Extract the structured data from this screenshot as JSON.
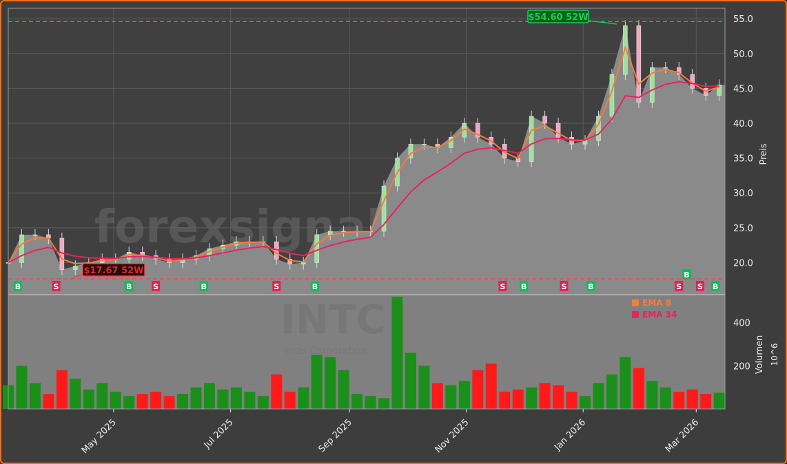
{
  "chart_data": [
    {
      "type": "candlestick",
      "ylabel": "Preis",
      "ylim": [
        15.5,
        56.5
      ],
      "yticks": [
        20.0,
        25.0,
        30.0,
        35.0,
        40.0,
        45.0,
        50.0,
        55.0
      ],
      "xlim": [
        "2025-03-07",
        "2026-03-16"
      ],
      "xticks": [
        {
          "date": "2025-05-01",
          "label": "May 2025"
        },
        {
          "date": "2025-07-01",
          "label": "Jul 2025"
        },
        {
          "date": "2025-09-01",
          "label": "Sep 2025"
        },
        {
          "date": "2025-11-01",
          "label": "Nov 2025"
        },
        {
          "date": "2026-01-01",
          "label": "Jan 2026"
        },
        {
          "date": "2026-03-01",
          "label": "Mar 2026"
        }
      ],
      "grid": true,
      "start_date": "2025-03-07",
      "period": "weekly",
      "close": [
        20,
        24,
        24,
        23.5,
        19,
        19.5,
        20,
        20.5,
        20.5,
        21.5,
        21,
        20.5,
        20,
        20.5,
        21,
        22,
        22.5,
        23,
        23,
        23,
        20.5,
        19.8,
        20,
        24,
        24.5,
        24.5,
        24.5,
        24.5,
        31,
        35,
        37,
        37,
        36.5,
        38,
        40,
        38,
        37,
        35,
        34.5,
        41,
        40,
        38,
        37,
        37.5,
        41,
        47,
        54,
        43,
        48,
        48,
        47,
        45,
        44,
        45.5
      ],
      "series": [
        {
          "name": "EMA 8",
          "color": "#f47c3c"
        },
        {
          "name": "EMA 34",
          "color": "#e8235f"
        }
      ],
      "annotations": [
        {
          "text": "$54.60 52W",
          "value": 54.6,
          "kind": "52w-high",
          "color": "#22c55e"
        },
        {
          "text": "$17.67 52W",
          "value": 17.67,
          "kind": "52w-low",
          "color": "#ef4444"
        }
      ],
      "signals": [
        {
          "date": "2025-03-12",
          "type": "B"
        },
        {
          "date": "2025-04-01",
          "type": "S"
        },
        {
          "date": "2025-05-09",
          "type": "B"
        },
        {
          "date": "2025-05-23",
          "type": "S"
        },
        {
          "date": "2025-06-17",
          "type": "B"
        },
        {
          "date": "2025-07-25",
          "type": "S"
        },
        {
          "date": "2025-08-14",
          "type": "B"
        },
        {
          "date": "2025-11-20",
          "type": "S"
        },
        {
          "date": "2025-12-01",
          "type": "B"
        },
        {
          "date": "2025-12-22",
          "type": "S"
        },
        {
          "date": "2026-01-05",
          "type": "B"
        },
        {
          "date": "2026-02-20",
          "type": "S"
        },
        {
          "date": "2026-02-24",
          "type": "B"
        },
        {
          "date": "2026-03-03",
          "type": "S"
        },
        {
          "date": "2026-03-11",
          "type": "B"
        }
      ],
      "legend": "top-right"
    },
    {
      "type": "bar",
      "ylabel": "Volumen",
      "yunit": "10^6",
      "ylim": [
        0,
        530
      ],
      "yticks": [
        200,
        400
      ],
      "volume": [
        110,
        200,
        120,
        70,
        180,
        140,
        90,
        120,
        80,
        60,
        70,
        80,
        60,
        70,
        100,
        120,
        90,
        100,
        80,
        60,
        160,
        80,
        100,
        250,
        240,
        180,
        70,
        60,
        50,
        520,
        260,
        200,
        120,
        110,
        130,
        180,
        210,
        80,
        90,
        100,
        120,
        110,
        80,
        60,
        120,
        160,
        240,
        190,
        130,
        100,
        80,
        90,
        70,
        75
      ]
    }
  ],
  "watermark": {
    "site": "forexsignale.trade",
    "ticker": "INTC",
    "company": "Intel Corporation"
  },
  "colors": {
    "up": "#1a8f1a",
    "down": "#ff1a1a",
    "panel": "#808080",
    "background": "#3d3d3d",
    "frame": "#ff6a13",
    "buy": "#00c15a",
    "sell": "#ee1d52"
  }
}
